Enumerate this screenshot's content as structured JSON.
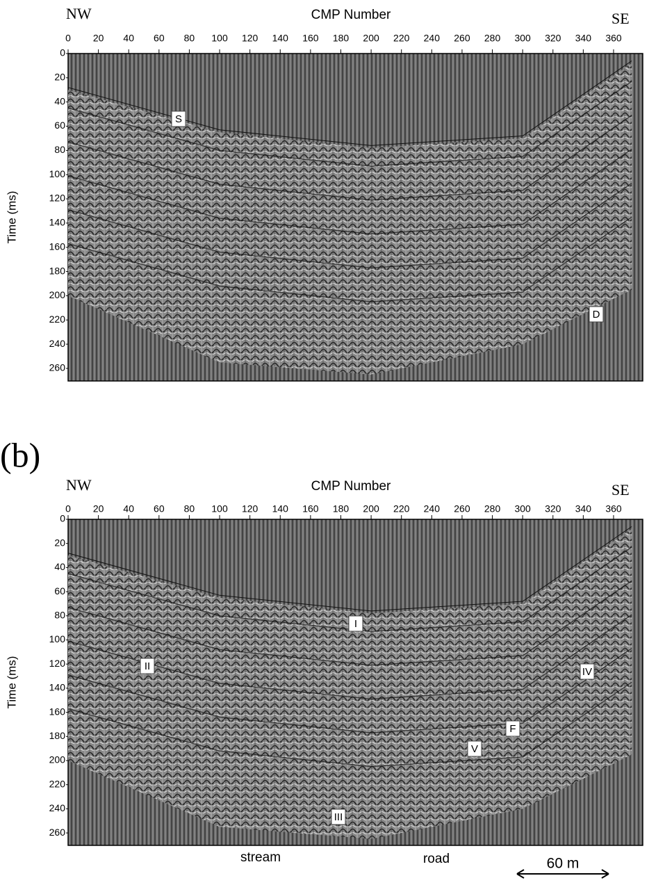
{
  "panels": [
    {
      "left_title": "NW",
      "axis_title": "CMP Number",
      "right_title": "SE",
      "y_axis_title": "Time (ms)",
      "x_ticks": [
        0,
        20,
        40,
        60,
        80,
        100,
        120,
        140,
        160,
        180,
        200,
        220,
        240,
        260,
        280,
        300,
        320,
        340,
        360
      ],
      "y_ticks": [
        0,
        20,
        40,
        60,
        80,
        100,
        120,
        140,
        160,
        180,
        200,
        220,
        240,
        260
      ],
      "annotations": [
        "S",
        "D"
      ]
    },
    {
      "label": "(b)",
      "left_title": "NW",
      "axis_title": "CMP Number",
      "right_title": "SE",
      "y_axis_title": "Time (ms)",
      "x_ticks": [
        0,
        20,
        40,
        60,
        80,
        100,
        120,
        140,
        160,
        180,
        200,
        220,
        240,
        260,
        280,
        300,
        320,
        340,
        360
      ],
      "y_ticks": [
        0,
        20,
        40,
        60,
        80,
        100,
        120,
        140,
        160,
        180,
        200,
        220,
        240,
        260
      ],
      "annotations": [
        "I",
        "II",
        "IV",
        "F",
        "V",
        "III"
      ],
      "bottom_labels": [
        "stream",
        "road"
      ],
      "scale_bar": "60 m"
    }
  ]
}
